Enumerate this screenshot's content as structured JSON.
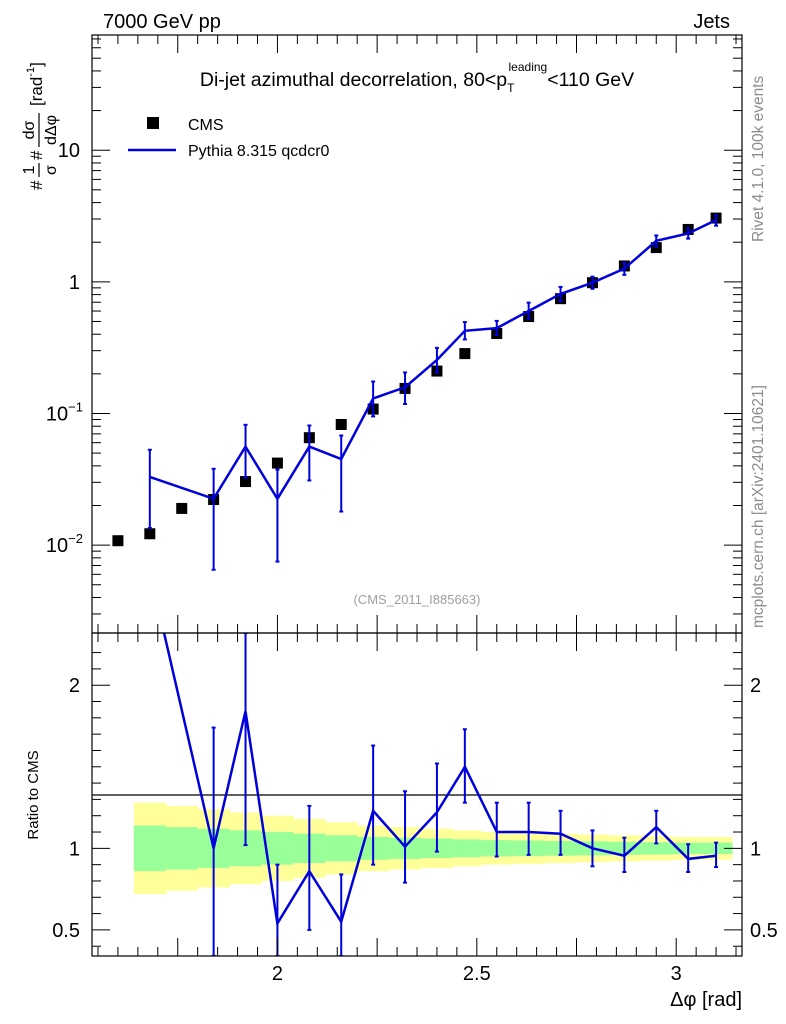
{
  "header": {
    "energy_label": "7000 GeV pp",
    "category_label": "Jets"
  },
  "side_labels": {
    "rivet": "Rivet 4.1.0,  100k events",
    "source": "mcplots.cern.ch [arXiv:2401.10621]"
  },
  "chart_data": [
    {
      "type": "scatter",
      "panel": "main",
      "title": "Di-jet azimuthal decorrelation, 80<pT leading<110 GeV",
      "title_parts": {
        "prefix": "Di-jet azimuthal decorrelation, 80<p",
        "sub": "T",
        "sup": "leading",
        "suffix": "<110 GeV"
      },
      "analysis_tag": "(CMS_2011_I885663)",
      "yscale": "log",
      "ylabel": "#frac{1}{σ}#frac{dσ}{dΔφ} [rad⁻¹]",
      "ylabel_parts": {
        "n1": "1",
        "d1": "σ",
        "n2": "dσ",
        "d2": "dΔφ",
        "unit": "[rad",
        "unit_sup": "-1",
        "unit_end": "]"
      },
      "xlim": [
        1.535,
        3.165
      ],
      "ylim": [
        0.00215,
        75
      ],
      "yticks": [
        {
          "value": 10,
          "label": "10"
        },
        {
          "value": 1,
          "label": "1"
        },
        {
          "value": 0.1,
          "base": "10",
          "exp": "−1"
        },
        {
          "value": 0.01,
          "base": "10",
          "exp": "−2"
        }
      ],
      "legend": [
        {
          "label": "CMS",
          "marker": "square",
          "color": "#000000"
        },
        {
          "label": "Pythia 8.315 qcdcr0",
          "marker": "line",
          "color": "#0000dd"
        }
      ],
      "series": [
        {
          "name": "CMS",
          "x": [
            1.6,
            1.68,
            1.76,
            1.84,
            1.92,
            2.0,
            2.08,
            2.16,
            2.24,
            2.32,
            2.4,
            2.47,
            2.55,
            2.63,
            2.71,
            2.79,
            2.87,
            2.95,
            3.03,
            3.1
          ],
          "y": [
            0.0108,
            0.0122,
            0.019,
            0.0222,
            0.0304,
            0.042,
            0.0655,
            0.0825,
            0.108,
            0.155,
            0.21,
            0.285,
            0.405,
            0.545,
            0.745,
            0.985,
            1.32,
            1.82,
            2.5,
            3.05
          ]
        },
        {
          "name": "Pythia 8.315 qcdcr0",
          "x": [
            1.68,
            1.84,
            1.92,
            2.0,
            2.08,
            2.16,
            2.24,
            2.32,
            2.4,
            2.47,
            2.55,
            2.63,
            2.71,
            2.79,
            2.87,
            2.95,
            3.03,
            3.1
          ],
          "y": [
            0.033,
            0.0225,
            0.056,
            0.0225,
            0.056,
            0.045,
            0.13,
            0.158,
            0.255,
            0.425,
            0.445,
            0.6,
            0.81,
            0.985,
            1.26,
            2.05,
            2.33,
            2.95
          ],
          "yerr_low": [
            0.0195,
            0.016,
            0.0235,
            0.015,
            0.025,
            0.027,
            0.035,
            0.04,
            0.05,
            0.06,
            0.05,
            0.075,
            0.095,
            0.1,
            0.13,
            0.2,
            0.2,
            0.28
          ],
          "yerr_high": [
            0.02,
            0.0155,
            0.026,
            0.015,
            0.025,
            0.023,
            0.045,
            0.047,
            0.06,
            0.07,
            0.06,
            0.095,
            0.105,
            0.11,
            0.14,
            0.2,
            0.22,
            0.25
          ]
        }
      ]
    },
    {
      "type": "line",
      "panel": "ratio",
      "xlabel": "Δφ [rad]",
      "ylabel": "Ratio to CMS",
      "xlim": [
        1.535,
        3.165
      ],
      "ylim": [
        0.34,
        2.32
      ],
      "xticks": [
        {
          "value": 2.0,
          "label": "2"
        },
        {
          "value": 2.5,
          "label": "2.5"
        },
        {
          "value": 3.0,
          "label": "3"
        }
      ],
      "yticks": [
        {
          "value": 2,
          "label": "2"
        },
        {
          "value": 1,
          "label": "1"
        },
        {
          "value": 0.5,
          "label": "0.5"
        }
      ],
      "bands": {
        "edges": [
          1.64,
          1.72,
          1.8,
          1.88,
          1.96,
          2.04,
          2.12,
          2.2,
          2.28,
          2.36,
          2.44,
          2.51,
          2.59,
          2.67,
          2.75,
          2.83,
          2.91,
          2.99,
          3.07,
          3.14
        ],
        "yellow_half_width": [
          0.28,
          0.26,
          0.24,
          0.22,
          0.2,
          0.18,
          0.16,
          0.14,
          0.13,
          0.12,
          0.11,
          0.1,
          0.095,
          0.09,
          0.085,
          0.08,
          0.075,
          0.07,
          0.07
        ],
        "green_half_width": [
          0.14,
          0.13,
          0.12,
          0.11,
          0.1,
          0.09,
          0.08,
          0.07,
          0.065,
          0.06,
          0.055,
          0.05,
          0.048,
          0.045,
          0.043,
          0.04,
          0.038,
          0.035,
          0.035
        ]
      },
      "series": [
        {
          "name": "Pythia 8.315 qcdcr0 / CMS",
          "x": [
            1.68,
            1.84,
            1.92,
            2.0,
            2.08,
            2.16,
            2.24,
            2.32,
            2.4,
            2.47,
            2.55,
            2.63,
            2.71,
            2.79,
            2.87,
            2.95,
            3.03,
            3.1
          ],
          "y": [
            2.7,
            1.0,
            1.84,
            0.54,
            0.86,
            0.55,
            1.23,
            1.01,
            1.22,
            1.5,
            1.1,
            1.1,
            1.09,
            1.0,
            0.955,
            1.13,
            0.935,
            0.955
          ],
          "yerr_low": [
            0.0,
            0.66,
            0.82,
            0.38,
            0.36,
            0.33,
            0.33,
            0.22,
            0.24,
            0.22,
            0.15,
            0.14,
            0.13,
            0.11,
            0.1,
            0.1,
            0.08,
            0.07
          ],
          "yerr_high": [
            0.0,
            0.74,
            0.95,
            0.36,
            0.4,
            0.29,
            0.4,
            0.34,
            0.3,
            0.23,
            0.18,
            0.18,
            0.14,
            0.11,
            0.11,
            0.1,
            0.09,
            0.08
          ]
        }
      ]
    }
  ]
}
